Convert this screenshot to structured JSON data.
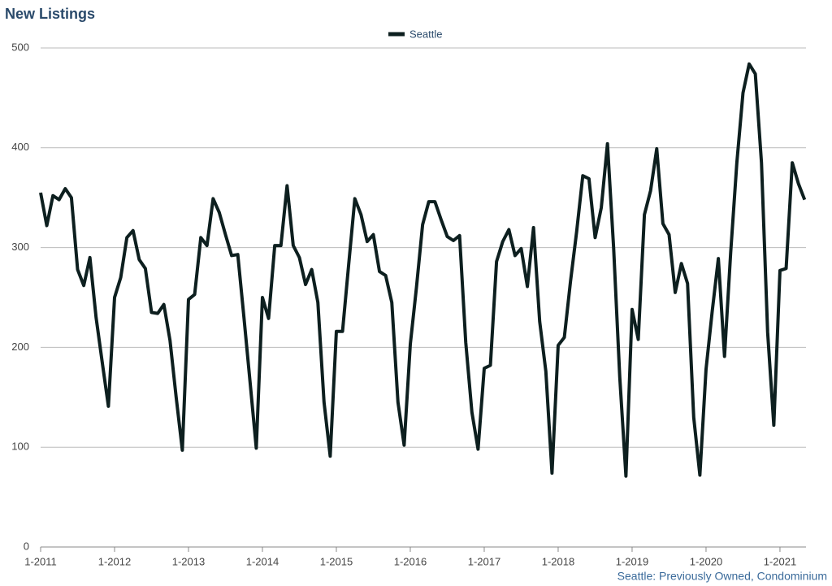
{
  "chart_data": {
    "type": "line",
    "title": "New Listings",
    "note": "Seattle: Previously Owned, Condominium",
    "categories": [
      "1-2011",
      null,
      null,
      null,
      null,
      null,
      null,
      null,
      null,
      null,
      null,
      null,
      "1-2012",
      null,
      null,
      null,
      null,
      null,
      null,
      null,
      null,
      null,
      null,
      null,
      "1-2013",
      null,
      null,
      null,
      null,
      null,
      null,
      null,
      null,
      null,
      null,
      null,
      "1-2014",
      null,
      null,
      null,
      null,
      null,
      null,
      null,
      null,
      null,
      null,
      null,
      "1-2015",
      null,
      null,
      null,
      null,
      null,
      null,
      null,
      null,
      null,
      null,
      null,
      "1-2016",
      null,
      null,
      null,
      null,
      null,
      null,
      null,
      null,
      null,
      null,
      null,
      "1-2017",
      null,
      null,
      null,
      null,
      null,
      null,
      null,
      null,
      null,
      null,
      null,
      "1-2018",
      null,
      null,
      null,
      null,
      null,
      null,
      null,
      null,
      null,
      null,
      null,
      "1-2019",
      null,
      null,
      null,
      null,
      null,
      null,
      null,
      null,
      null,
      null,
      null,
      "1-2020",
      null,
      null,
      null,
      null,
      null,
      null,
      null,
      null,
      null,
      null,
      null,
      "1-2021",
      null,
      null,
      null,
      null
    ],
    "series": [
      {
        "name": "Seattle",
        "color": "#0d1f1f",
        "values": [
          355,
          322,
          352,
          348,
          359,
          350,
          278,
          262,
          290,
          230,
          185,
          141,
          250,
          270,
          310,
          317,
          288,
          279,
          235,
          234,
          243,
          207,
          150,
          97,
          248,
          253,
          310,
          302,
          349,
          335,
          313,
          292,
          293,
          230,
          165,
          99,
          250,
          229,
          302,
          302,
          362,
          302,
          290,
          263,
          278,
          245,
          145,
          91,
          216,
          216,
          283,
          349,
          333,
          306,
          313,
          276,
          272,
          245,
          145,
          102,
          203,
          260,
          323,
          346,
          346,
          328,
          311,
          307,
          312,
          205,
          135,
          98,
          179,
          182,
          286,
          306,
          318,
          292,
          299,
          261,
          320,
          226,
          176,
          74,
          202,
          210,
          266,
          316,
          372,
          369,
          310,
          340,
          404,
          300,
          170,
          71,
          238,
          208,
          333,
          357,
          399,
          324,
          313,
          255,
          284,
          264,
          130,
          72,
          178,
          236,
          289,
          191,
          295,
          385,
          455,
          484,
          474,
          385,
          215,
          122,
          277,
          279,
          385,
          364,
          348
        ]
      }
    ],
    "ylim": [
      0,
      500
    ],
    "yticks": [
      0,
      100,
      200,
      300,
      400,
      500
    ],
    "grid": true,
    "legend": "top"
  }
}
